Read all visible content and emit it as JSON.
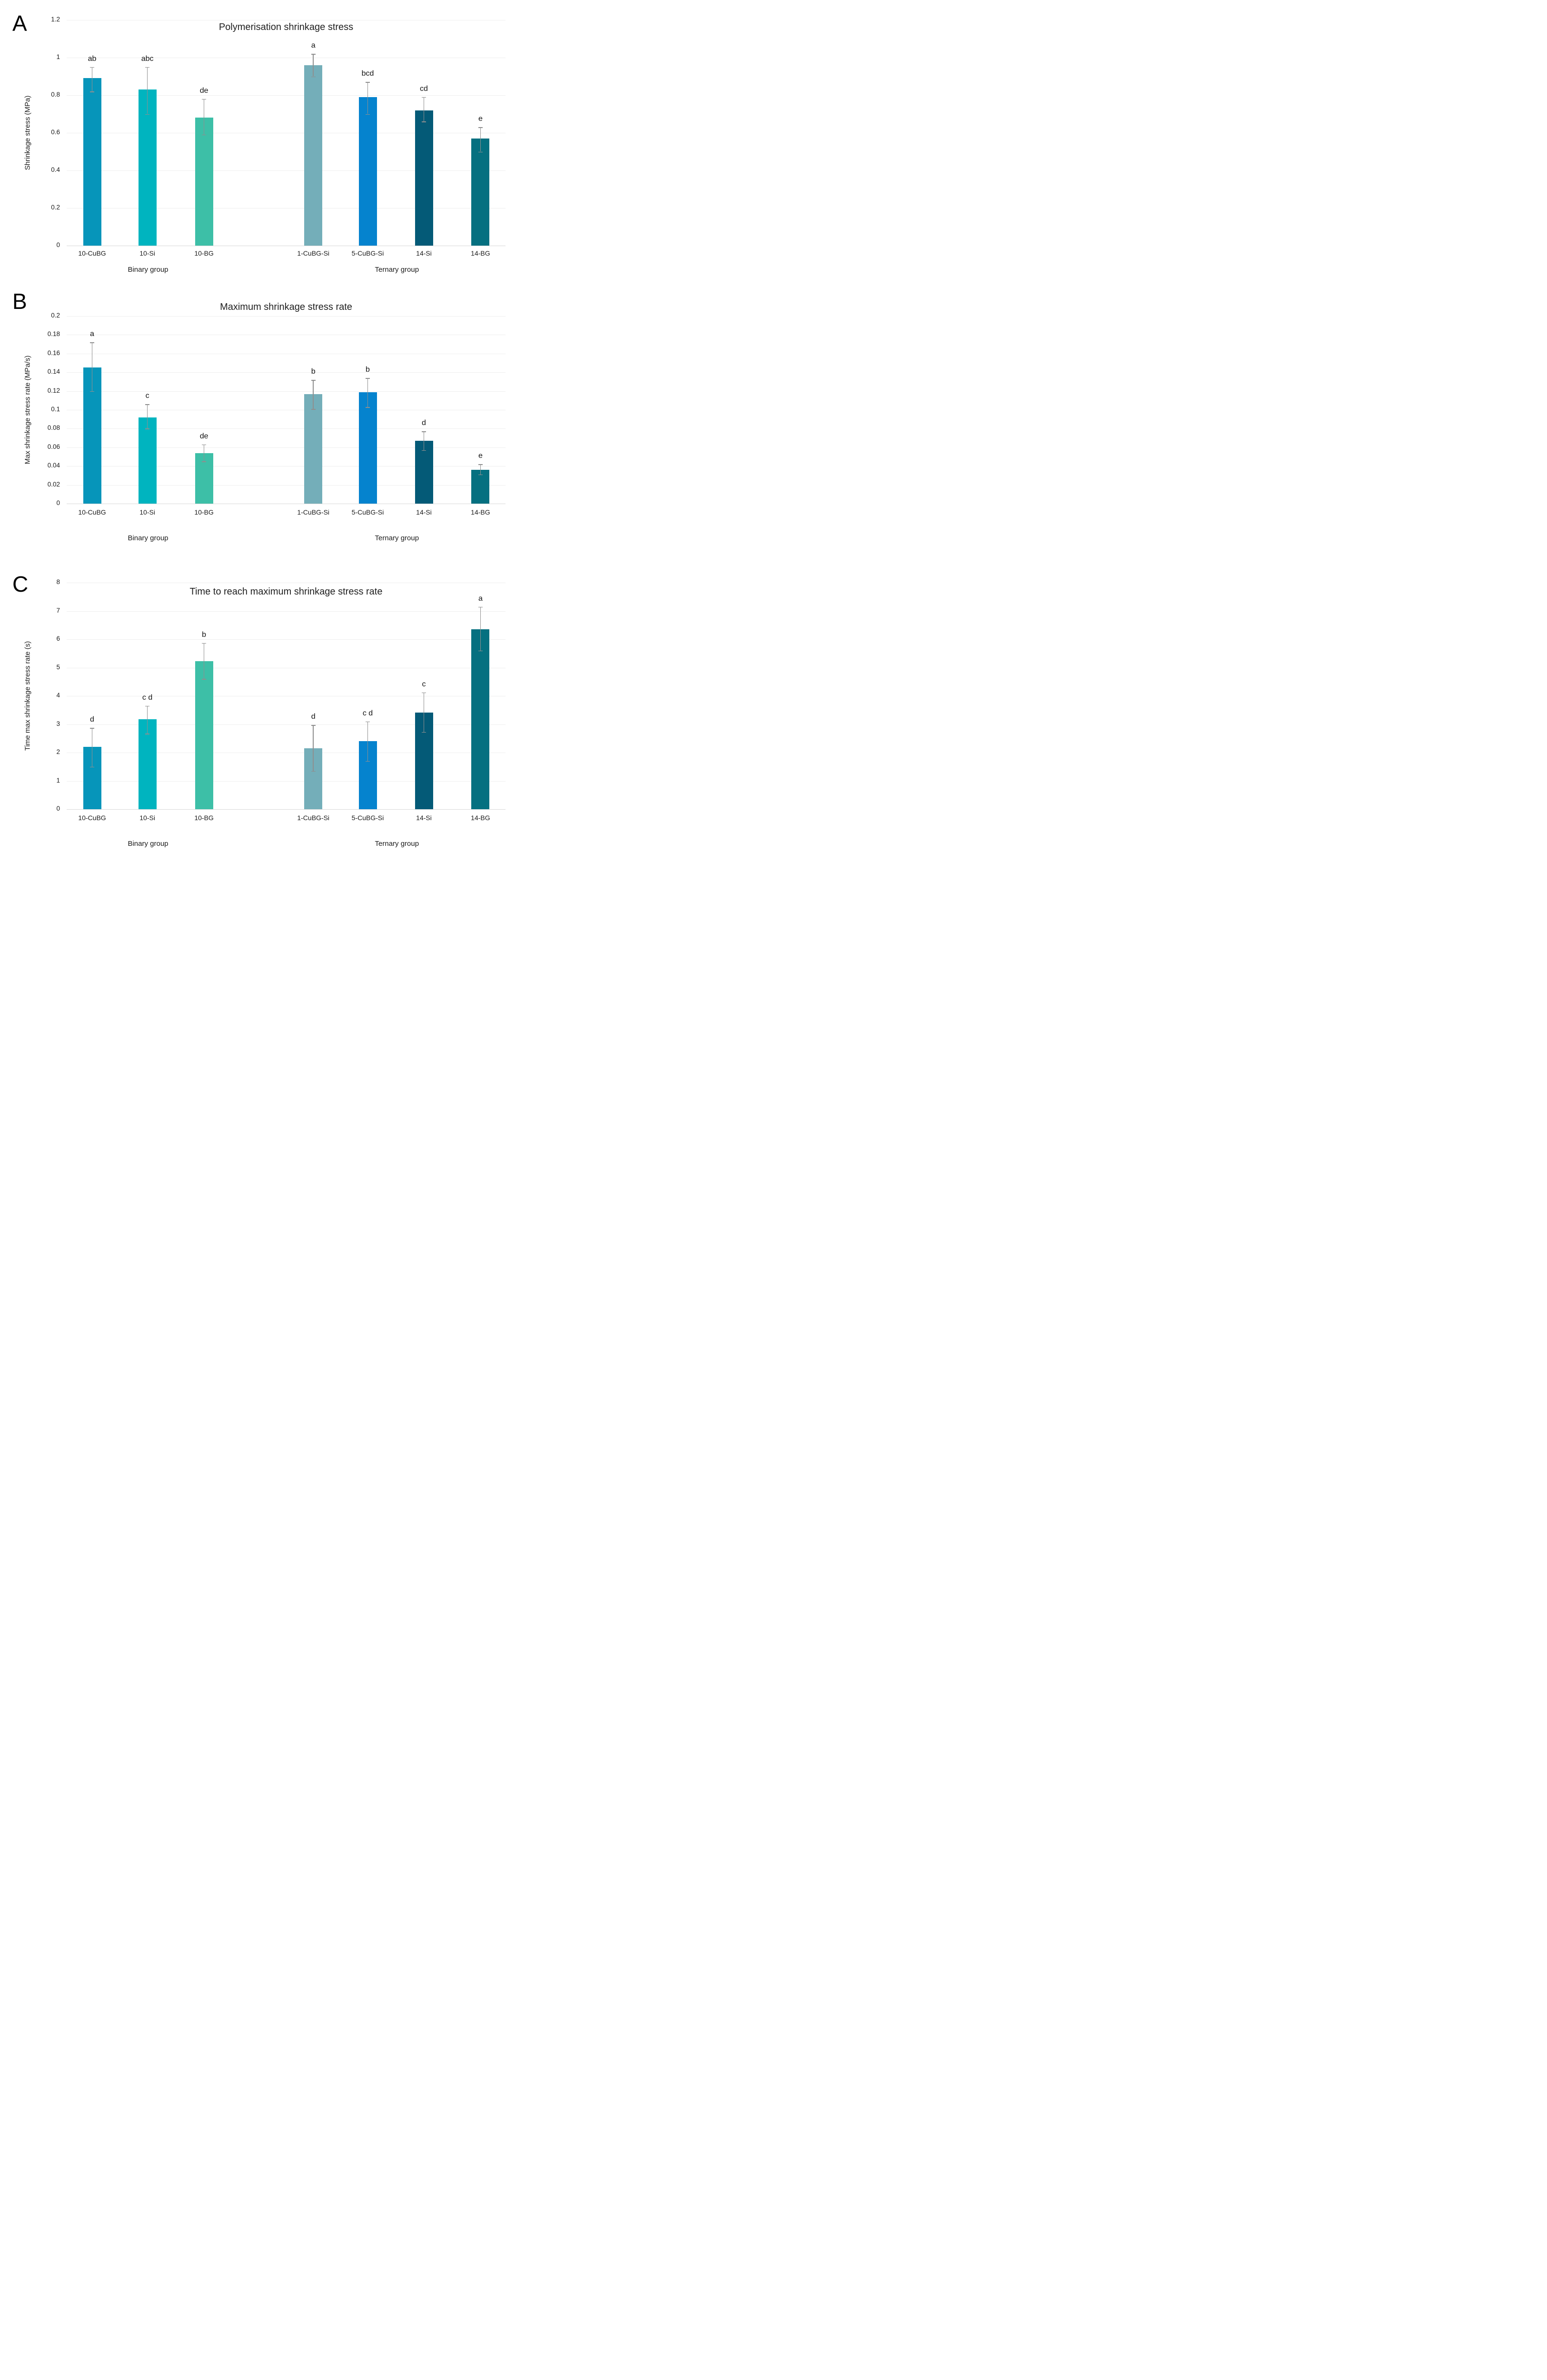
{
  "bar_colors": [
    "#0695ba",
    "#00b4bf",
    "#3dbfa7",
    "#74aeb9",
    "#0583ce",
    "#045a77",
    "#057080"
  ],
  "error_bar_color": "#8f8f8f",
  "chart_data": [
    {
      "type": "bar",
      "panel_letter": "A",
      "title": "Polymerisation shrinkage stress",
      "xlabel": "",
      "ylabel": "Shrinkage stress (MPa)",
      "ylim": [
        0,
        1.2
      ],
      "ytick_labels": [
        "1.2",
        "1",
        "0.8",
        "0.6",
        "0.4",
        "0.2",
        "0"
      ],
      "grid": true,
      "legend": null,
      "categories": [
        "10-CuBG",
        "10-Si",
        "10-BG",
        "1-CuBG-Si",
        "5-CuBG-Si",
        "14-Si",
        "14-BG"
      ],
      "group_labels": [
        "Binary group",
        "Ternary group"
      ],
      "values": [
        0.89,
        0.83,
        0.68,
        0.96,
        0.79,
        0.72,
        0.57
      ],
      "error_low": [
        0.82,
        0.7,
        0.59,
        0.9,
        0.7,
        0.66,
        0.5
      ],
      "error_high": [
        0.95,
        0.95,
        0.78,
        1.02,
        0.87,
        0.79,
        0.63
      ],
      "sig_labels": [
        "ab",
        "abc",
        "de",
        "a",
        "bcd",
        "cd",
        "e"
      ]
    },
    {
      "type": "bar",
      "panel_letter": "B",
      "title": "Maximum shrinkage stress rate",
      "xlabel": "",
      "ylabel": "Max shrinkage stress rate (MPa/s)",
      "ylim": [
        0,
        0.2
      ],
      "ytick_labels": [
        "0.2",
        "0.18",
        "0.16",
        "0.14",
        "0.12",
        "0.1",
        "0.08",
        "0.06",
        "0.04",
        "0.02",
        "0"
      ],
      "grid": true,
      "legend": null,
      "categories": [
        "10-CuBG",
        "10-Si",
        "10-BG",
        "1-CuBG-Si",
        "5-CuBG-Si",
        "14-Si",
        "14-BG"
      ],
      "group_labels": [
        "Binary group",
        "Ternary group"
      ],
      "values": [
        0.145,
        0.092,
        0.054,
        0.117,
        0.119,
        0.067,
        0.036
      ],
      "error_low": [
        0.12,
        0.08,
        0.045,
        0.101,
        0.103,
        0.057,
        0.031
      ],
      "error_high": [
        0.172,
        0.106,
        0.063,
        0.132,
        0.134,
        0.077,
        0.042
      ],
      "sig_labels": [
        "a",
        "c",
        "de",
        "b",
        "b",
        "d",
        "e"
      ]
    },
    {
      "type": "bar",
      "panel_letter": "C",
      "title": "Time to reach maximum shrinkage stress rate",
      "xlabel": "",
      "ylabel": "Time max shrinkage stress rate (s)",
      "ylim": [
        0,
        8
      ],
      "ytick_labels": [
        "8",
        "7",
        "6",
        "5",
        "4",
        "3",
        "2",
        "1",
        "0"
      ],
      "grid": true,
      "legend": null,
      "categories": [
        "10-CuBG",
        "10-Si",
        "10-BG",
        "1-CuBG-Si",
        "5-CuBG-Si",
        "14-Si",
        "14-BG"
      ],
      "group_labels": [
        "Binary group",
        "Ternary group"
      ],
      "values": [
        2.2,
        3.17,
        5.22,
        2.15,
        2.4,
        3.41,
        6.36
      ],
      "error_low": [
        1.5,
        2.67,
        4.6,
        1.35,
        1.7,
        2.73,
        5.6
      ],
      "error_high": [
        2.87,
        3.65,
        5.87,
        2.97,
        3.1,
        4.12,
        7.15
      ],
      "sig_labels": [
        "d",
        "c d",
        "b",
        "d",
        "c d",
        "c",
        "a"
      ]
    }
  ]
}
